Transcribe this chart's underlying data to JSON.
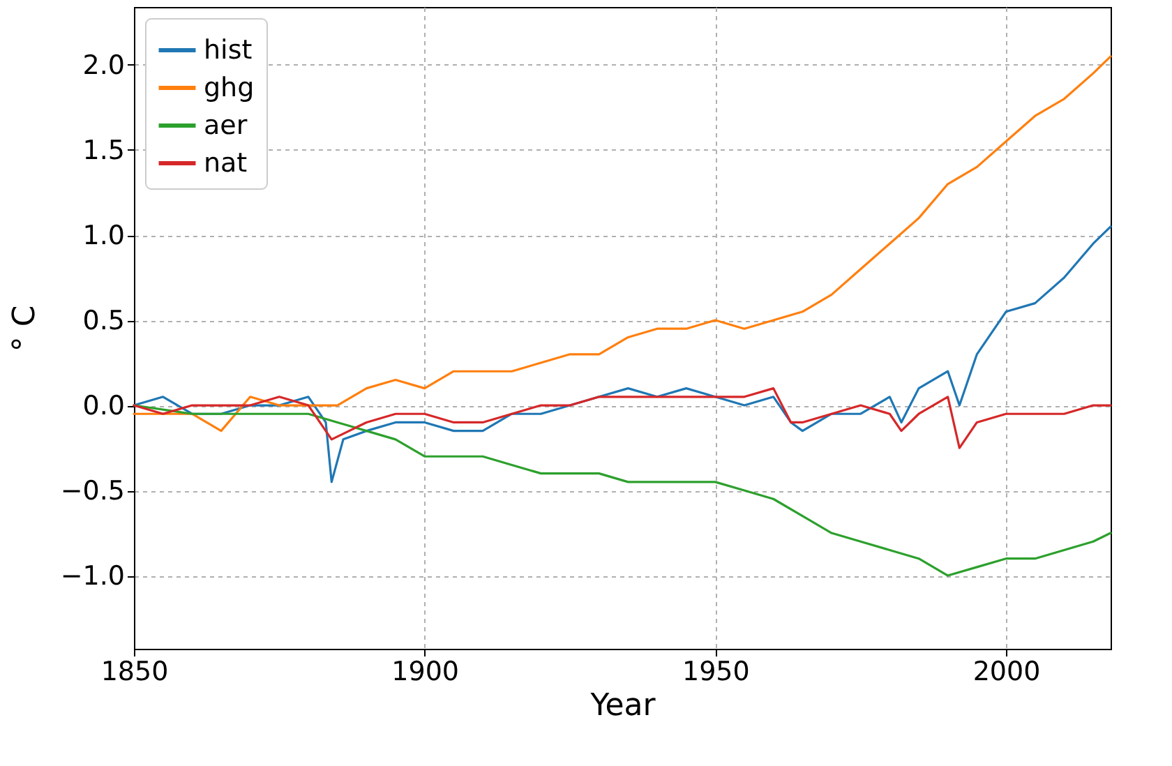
{
  "chart_data": {
    "type": "line",
    "xlabel": "Year",
    "ylabel": "° C",
    "xlim": [
      1850,
      2018
    ],
    "ylim": [
      -1.43,
      2.34
    ],
    "xticks": [
      1850,
      1900,
      1950,
      2000
    ],
    "yticks": [
      {
        "value": -1.0,
        "label": "−1.0"
      },
      {
        "value": -0.5,
        "label": "−0.5"
      },
      {
        "value": 0.0,
        "label": "0.0"
      },
      {
        "value": 0.5,
        "label": "0.5"
      },
      {
        "value": 1.0,
        "label": "1.0"
      },
      {
        "value": 1.5,
        "label": "1.5"
      },
      {
        "value": 2.0,
        "label": "2.0"
      }
    ],
    "grid": true,
    "legend": "top left",
    "line_style": "solid",
    "marker": "none",
    "series": [
      {
        "name": "hist",
        "color": "#1f77b4",
        "x": [
          1850,
          1855,
          1860,
          1865,
          1870,
          1875,
          1880,
          1883,
          1884,
          1886,
          1890,
          1895,
          1900,
          1905,
          1910,
          1915,
          1920,
          1925,
          1930,
          1935,
          1940,
          1945,
          1950,
          1955,
          1960,
          1963,
          1965,
          1970,
          1975,
          1980,
          1982,
          1985,
          1990,
          1992,
          1995,
          2000,
          2005,
          2010,
          2015,
          2018
        ],
        "values": [
          0,
          0.05,
          -0.05,
          -0.05,
          0,
          0,
          0.05,
          -0.1,
          -0.45,
          -0.2,
          -0.15,
          -0.1,
          -0.1,
          -0.15,
          -0.15,
          -0.05,
          -0.05,
          0,
          0.05,
          0.1,
          0.05,
          0.1,
          0.05,
          0,
          0.05,
          -0.1,
          -0.15,
          -0.05,
          -0.05,
          0.05,
          -0.1,
          0.1,
          0.2,
          0,
          0.3,
          0.55,
          0.6,
          0.75,
          0.95,
          1.05
        ]
      },
      {
        "name": "ghg",
        "color": "#ff7f0e",
        "x": [
          1850,
          1860,
          1865,
          1870,
          1875,
          1880,
          1885,
          1890,
          1895,
          1900,
          1905,
          1910,
          1915,
          1920,
          1925,
          1930,
          1935,
          1940,
          1945,
          1950,
          1955,
          1960,
          1965,
          1970,
          1975,
          1980,
          1985,
          1990,
          1995,
          2000,
          2005,
          2010,
          2015,
          2018
        ],
        "values": [
          -0.05,
          -0.05,
          -0.15,
          0.05,
          0,
          0,
          0,
          0.1,
          0.15,
          0.1,
          0.2,
          0.2,
          0.2,
          0.25,
          0.3,
          0.3,
          0.4,
          0.45,
          0.45,
          0.5,
          0.45,
          0.5,
          0.55,
          0.65,
          0.8,
          0.95,
          1.1,
          1.3,
          1.4,
          1.55,
          1.7,
          1.8,
          1.95,
          2.05
        ]
      },
      {
        "name": "aer",
        "color": "#2ca02c",
        "x": [
          1850,
          1860,
          1870,
          1880,
          1885,
          1890,
          1895,
          1900,
          1905,
          1910,
          1915,
          1920,
          1925,
          1930,
          1935,
          1940,
          1945,
          1950,
          1955,
          1960,
          1965,
          1970,
          1975,
          1980,
          1985,
          1990,
          1995,
          2000,
          2005,
          2010,
          2015,
          2018
        ],
        "values": [
          0,
          -0.05,
          -0.05,
          -0.05,
          -0.1,
          -0.15,
          -0.2,
          -0.3,
          -0.3,
          -0.3,
          -0.35,
          -0.4,
          -0.4,
          -0.4,
          -0.45,
          -0.45,
          -0.45,
          -0.45,
          -0.5,
          -0.55,
          -0.65,
          -0.75,
          -0.8,
          -0.85,
          -0.9,
          -1.0,
          -0.95,
          -0.9,
          -0.9,
          -0.85,
          -0.8,
          -0.75
        ]
      },
      {
        "name": "nat",
        "color": "#d62728",
        "x": [
          1850,
          1855,
          1860,
          1865,
          1870,
          1875,
          1880,
          1884,
          1890,
          1895,
          1900,
          1905,
          1910,
          1915,
          1920,
          1925,
          1930,
          1935,
          1940,
          1945,
          1950,
          1955,
          1960,
          1963,
          1965,
          1970,
          1975,
          1980,
          1982,
          1985,
          1990,
          1992,
          1995,
          2000,
          2005,
          2010,
          2015,
          2018
        ],
        "values": [
          0,
          -0.05,
          0,
          0,
          0,
          0.05,
          0,
          -0.2,
          -0.1,
          -0.05,
          -0.05,
          -0.1,
          -0.1,
          -0.05,
          0,
          0,
          0.05,
          0.05,
          0.05,
          0.05,
          0.05,
          0.05,
          0.1,
          -0.1,
          -0.1,
          -0.05,
          0,
          -0.05,
          -0.15,
          -0.05,
          0.05,
          -0.25,
          -0.1,
          -0.05,
          -0.05,
          -0.05,
          0,
          0
        ]
      }
    ]
  }
}
